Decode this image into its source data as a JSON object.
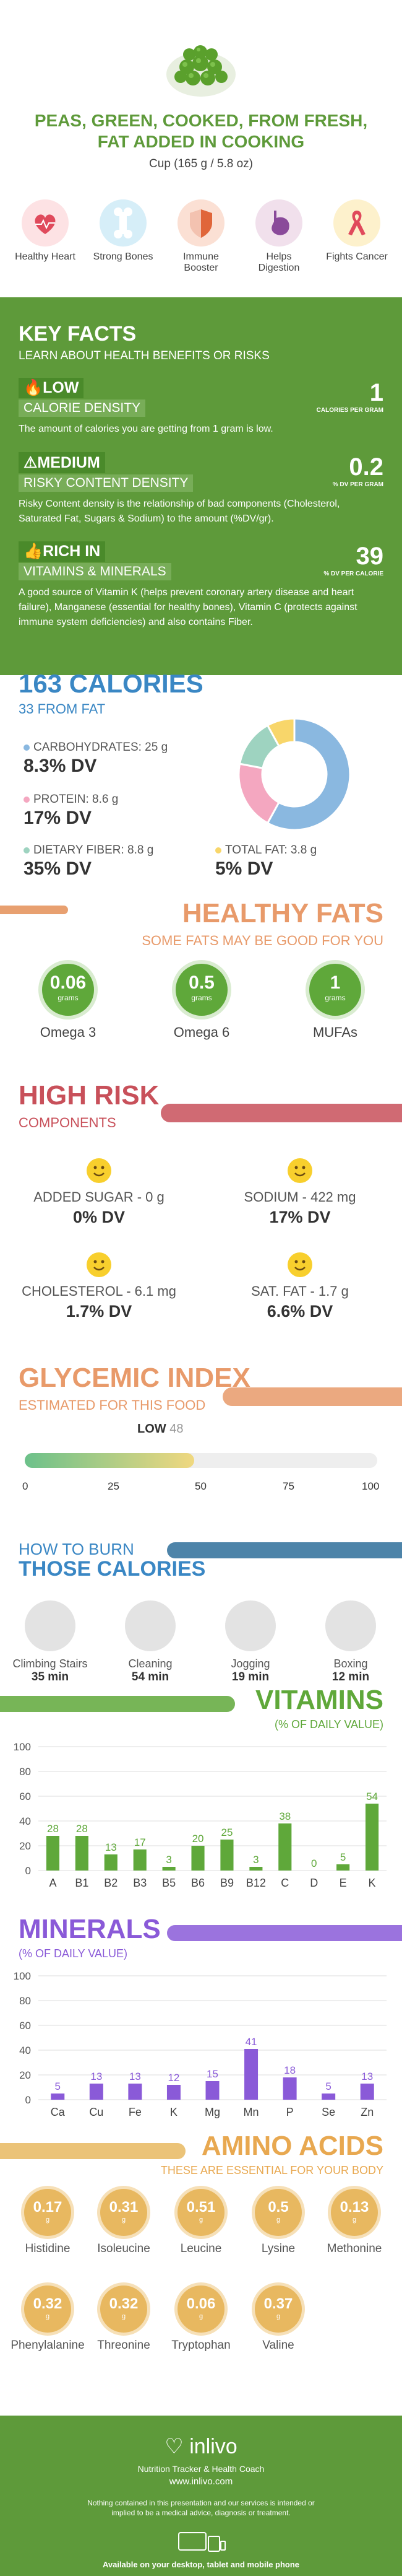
{
  "header": {
    "title": "PEAS, GREEN, COOKED, FROM FRESH, FAT ADDED IN COOKING",
    "serving": "Cup (165 g / 5.8 oz)",
    "benefits": [
      {
        "label": "Healthy Heart",
        "icon": "heart-icon",
        "color": "#e04a5c"
      },
      {
        "label": "Strong Bones",
        "icon": "bone-icon",
        "color": "#3aa8d8"
      },
      {
        "label": "Immune Booster",
        "icon": "shield-icon",
        "color": "#e0663a"
      },
      {
        "label": "Helps Digestion",
        "icon": "stomach-icon",
        "color": "#8a4a9a"
      },
      {
        "label": "Fights Cancer",
        "icon": "ribbon-icon",
        "color": "#f6c13a"
      }
    ]
  },
  "keyfacts": {
    "title": "KEY FACTS",
    "subtitle": "LEARN ABOUT HEALTH BENEFITS OR RISKS",
    "calorie_density": {
      "tag": "LOW",
      "label": "CALORIE DENSITY",
      "value": "1",
      "unit": "CALORIES PER GRAM",
      "desc": "The amount of calories you are getting from 1 gram is low."
    },
    "risky": {
      "tag": "MEDIUM",
      "label": "RISKY CONTENT DENSITY",
      "value": "0.2",
      "unit": "% DV PER GRAM",
      "desc": "Risky Content density is the relationship of bad components (Cholesterol, Saturated Fat, Sugars & Sodium) to the amount (%DV/gr)."
    },
    "rich": {
      "tag": "RICH IN",
      "label": "VITAMINS & MINERALS",
      "value": "39",
      "unit": "% DV PER CALORIE",
      "desc": "A good source of Vitamin K (helps prevent coronary artery disease and heart failure), Manganese (essential for healthy bones), Vitamin C (protects against immune system deficiencies) and also contains Fiber."
    }
  },
  "calories": {
    "title": "163 CALORIES",
    "fat": "33 FROM FAT",
    "macros": [
      {
        "label": "CARBOHYDRATES: 25 g",
        "dv": "8.3% DV",
        "color": "#8ab8e0"
      },
      {
        "label": "PROTEIN: 8.6 g",
        "dv": "17% DV",
        "color": "#f4a7c0"
      },
      {
        "label": "DIETARY FIBER: 8.8 g",
        "dv": "35% DV",
        "color": "#9ed3c0"
      },
      {
        "label": "TOTAL FAT: 3.8 g",
        "dv": "5% DV",
        "color": "#f8d66a"
      }
    ],
    "donut": [
      {
        "name": "carbs",
        "value": 58,
        "color": "#8ab8e0"
      },
      {
        "name": "protein",
        "value": 20,
        "color": "#f4a7c0"
      },
      {
        "name": "fiber",
        "value": 14,
        "color": "#9ed3c0"
      },
      {
        "name": "fat",
        "value": 8,
        "color": "#f8d66a"
      }
    ]
  },
  "fats": {
    "title": "HEALTHY FATS",
    "subtitle": "SOME FATS MAY BE GOOD FOR YOU",
    "items": [
      {
        "value": "0.06",
        "unit": "grams",
        "label": "Omega 3"
      },
      {
        "value": "0.5",
        "unit": "grams",
        "label": "Omega 6"
      },
      {
        "value": "1",
        "unit": "grams",
        "label": "MUFAs"
      }
    ]
  },
  "risk": {
    "title": "HIGH RISK",
    "subtitle": "COMPONENTS",
    "items": [
      {
        "label": "ADDED SUGAR - 0 g",
        "dv": "0% DV"
      },
      {
        "label": "SODIUM - 422 mg",
        "dv": "17% DV"
      },
      {
        "label": "CHOLESTEROL - 6.1 mg",
        "dv": "1.7% DV"
      },
      {
        "label": "SAT. FAT - 1.7 g",
        "dv": "6.6% DV"
      }
    ]
  },
  "glycemic": {
    "title": "GLYCEMIC INDEX",
    "subtitle": "ESTIMATED FOR THIS FOOD",
    "level": "LOW",
    "value": 48,
    "value_label": "48",
    "ticks": [
      "0",
      "25",
      "50",
      "75",
      "100"
    ]
  },
  "burn": {
    "title1": "HOW TO BURN",
    "title2": "THOSE CALORIES",
    "items": [
      {
        "label": "Climbing Stairs",
        "time": "35 min"
      },
      {
        "label": "Cleaning",
        "time": "54 min"
      },
      {
        "label": "Jogging",
        "time": "19 min"
      },
      {
        "label": "Boxing",
        "time": "12 min"
      }
    ]
  },
  "vitamins": {
    "title": "VITAMINS",
    "subtitle": "(% OF DAILY VALUE)"
  },
  "minerals": {
    "title": "MINERALS",
    "subtitle": "(% OF DAILY VALUE)"
  },
  "chart_data": [
    {
      "type": "bar",
      "title": "VITAMINS",
      "ylim": [
        0,
        100
      ],
      "yticks": [
        "0",
        "20",
        "40",
        "60",
        "80",
        "100"
      ],
      "categories": [
        "A",
        "B1",
        "B2",
        "B3",
        "B5",
        "B6",
        "B9",
        "B12",
        "C",
        "D",
        "E",
        "K"
      ],
      "values": [
        28,
        28,
        13,
        17,
        3,
        20,
        25,
        3,
        38,
        0,
        5,
        54
      ],
      "value_labels": [
        "28",
        "28",
        "13",
        "17",
        "3",
        "20",
        "25",
        "3",
        "38",
        "0",
        "5",
        "54"
      ],
      "color": "#5fa83a"
    },
    {
      "type": "bar",
      "title": "MINERALS",
      "ylim": [
        0,
        100
      ],
      "yticks": [
        "0",
        "20",
        "40",
        "60",
        "80",
        "100"
      ],
      "categories": [
        "Ca",
        "Cu",
        "Fe",
        "K",
        "Mg",
        "Mn",
        "P",
        "Se",
        "Zn"
      ],
      "values": [
        5,
        13,
        13,
        12,
        15,
        41,
        18,
        5,
        13
      ],
      "value_labels": [
        "5",
        "13",
        "13",
        "12",
        "15",
        "41",
        "18",
        "5",
        "13"
      ],
      "color": "#8a5ad8"
    }
  ],
  "amino": {
    "title": "AMINO ACIDS",
    "subtitle": "THESE ARE ESSENTIAL FOR YOUR BODY",
    "items": [
      {
        "value": "0.17",
        "unit": "g",
        "label": "Histidine"
      },
      {
        "value": "0.31",
        "unit": "g",
        "label": "Isoleucine"
      },
      {
        "value": "0.51",
        "unit": "g",
        "label": "Leucine"
      },
      {
        "value": "0.5",
        "unit": "g",
        "label": "Lysine"
      },
      {
        "value": "0.13",
        "unit": "g",
        "label": "Methonine"
      },
      {
        "value": "0.32",
        "unit": "g",
        "label": "Phenylalanine"
      },
      {
        "value": "0.32",
        "unit": "g",
        "label": "Threonine"
      },
      {
        "value": "0.06",
        "unit": "g",
        "label": "Tryptophan"
      },
      {
        "value": "0.37",
        "unit": "g",
        "label": "Valine"
      }
    ]
  },
  "footer": {
    "brand": "inlivo",
    "tagline": "Nutrition Tracker & Health Coach",
    "url": "www.inlivo.com",
    "disclaimer": "Nothing contained in this presentation and our services is intended or implied to be a medical advice, diagnosis or treatment.",
    "available": "Available on your desktop, tablet and mobile phone"
  }
}
